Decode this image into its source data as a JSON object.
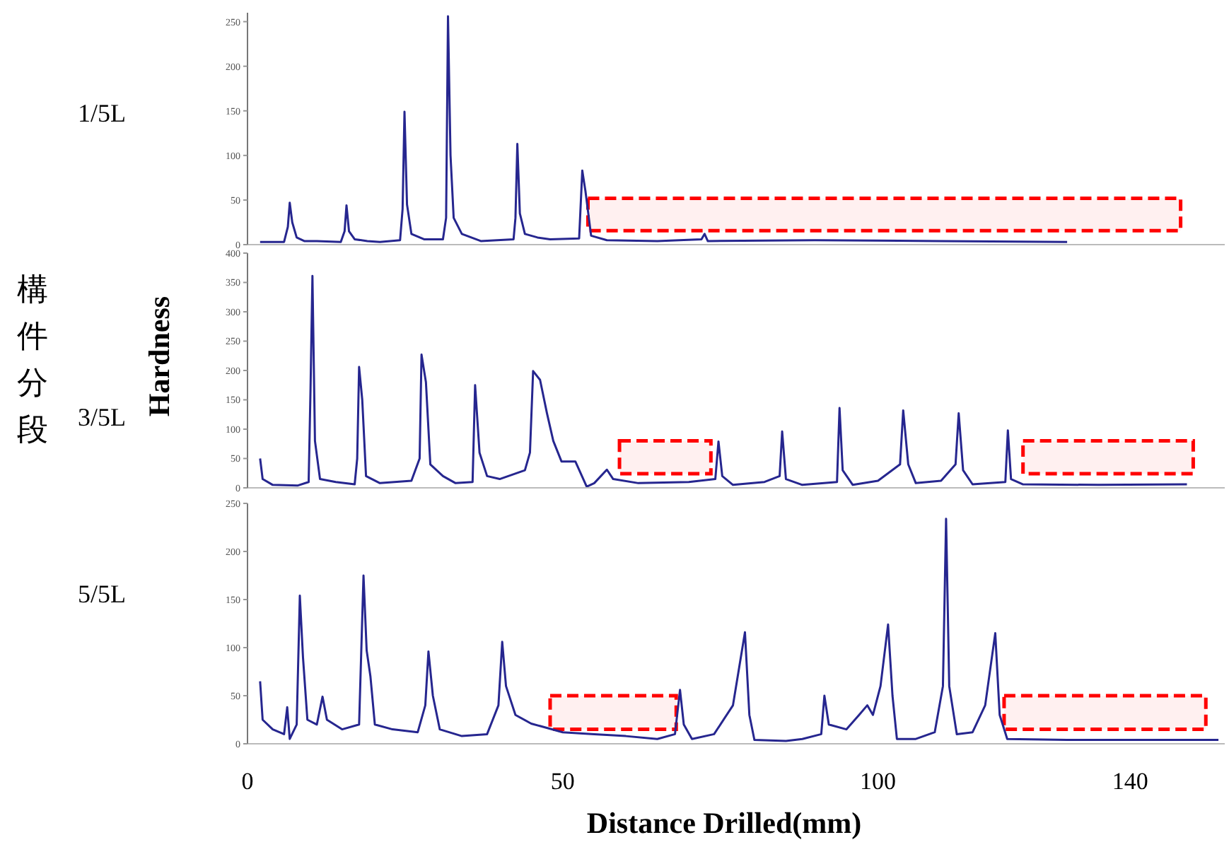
{
  "chart_data": [
    {
      "type": "line",
      "title": "1/5L",
      "tick_labels": "y",
      "xlim": [
        0,
        155
      ],
      "ylim": [
        0,
        260
      ],
      "yticks": [
        0,
        50,
        100,
        150,
        200,
        250
      ],
      "series": [
        {
          "color": "#26268f",
          "x": [
            2,
            5.8,
            6.4,
            6.7,
            7.1,
            7.8,
            9,
            11,
            14.8,
            15.4,
            15.7,
            16.1,
            17,
            19,
            21,
            24.2,
            24.6,
            24.9,
            25.3,
            26,
            28,
            31,
            31.5,
            31.8,
            32.2,
            32.7,
            34,
            35.5,
            37,
            42.2,
            42.5,
            42.8,
            43.2,
            44,
            46,
            48,
            52.6,
            53.1,
            53.6,
            54.5,
            57,
            65,
            72,
            72.5,
            73,
            90,
            110,
            130
          ],
          "values": [
            3,
            3,
            20,
            47,
            25,
            8,
            4,
            4,
            3,
            15,
            44,
            15,
            6,
            4,
            3,
            5,
            40,
            149,
            45,
            12,
            6,
            6,
            30,
            256,
            100,
            30,
            12,
            8,
            4,
            6,
            30,
            113,
            35,
            12,
            8,
            6,
            7,
            83,
            60,
            10,
            5,
            4,
            6,
            12,
            4,
            5,
            4,
            3
          ]
        }
      ],
      "bands": [
        {
          "axis": "x",
          "from": 54,
          "to": 148,
          "color": "#ff0000"
        }
      ]
    },
    {
      "type": "line",
      "title": "3/5L",
      "ylabel": "Hardness",
      "annotations": [
        "構件分段"
      ],
      "tick_labels": "y",
      "xlim": [
        0,
        155
      ],
      "ylim": [
        0,
        400
      ],
      "yticks": [
        0,
        50,
        100,
        150,
        200,
        250,
        300,
        350,
        400
      ],
      "series": [
        {
          "color": "#26268f",
          "x": [
            2,
            2.4,
            4,
            8,
            9.7,
            10,
            10.3,
            10.7,
            11.5,
            14,
            17,
            17.4,
            17.7,
            18.2,
            18.8,
            21,
            26,
            27.3,
            27.6,
            28.3,
            29,
            31,
            33,
            35.7,
            36.1,
            36.8,
            38,
            40,
            44,
            44.8,
            45.3,
            46.4,
            47.5,
            48.5,
            49.8,
            52,
            53.8,
            55,
            57,
            58,
            62,
            70,
            74.2,
            74.7,
            75.3,
            77,
            82,
            84.4,
            84.8,
            85.4,
            88,
            93.5,
            93.9,
            94.4,
            96,
            100,
            103.5,
            104,
            104.8,
            106,
            110,
            112.3,
            112.8,
            113.5,
            115,
            120.2,
            120.6,
            121.1,
            123,
            135,
            149
          ],
          "values": [
            50,
            15,
            5,
            4,
            10,
            170,
            361,
            80,
            15,
            10,
            6,
            50,
            206,
            150,
            20,
            8,
            12,
            50,
            227,
            180,
            40,
            20,
            8,
            10,
            175,
            60,
            20,
            15,
            30,
            60,
            199,
            184,
            127,
            80,
            45,
            45,
            2,
            8,
            31,
            15,
            8,
            10,
            15,
            79,
            20,
            5,
            10,
            20,
            96,
            15,
            5,
            10,
            136,
            30,
            5,
            12,
            40,
            132,
            40,
            8,
            12,
            40,
            127,
            30,
            6,
            10,
            98,
            15,
            6,
            5,
            6
          ]
        }
      ],
      "bands": [
        {
          "axis": "x",
          "from": 59,
          "to": 73.5,
          "color": "#ff0000"
        },
        {
          "axis": "x",
          "from": 123,
          "to": 150,
          "color": "#ff0000"
        }
      ]
    },
    {
      "type": "line",
      "title": "5/5L",
      "xlabel": "Distance Drilled(mm)",
      "xlim": [
        0,
        155
      ],
      "xticks": [
        0,
        50,
        100,
        140
      ],
      "ylim": [
        0,
        250
      ],
      "yticks": [
        0,
        50,
        100,
        150,
        200,
        250
      ],
      "series": [
        {
          "color": "#26268f",
          "x": [
            2,
            2.4,
            4,
            5.8,
            6.3,
            6.7,
            7.8,
            8.3,
            8.8,
            9.5,
            11,
            11.9,
            12.6,
            15,
            17.7,
            18.4,
            18.9,
            19.5,
            20.2,
            23,
            27,
            28.2,
            28.7,
            29.4,
            30.5,
            34,
            38,
            39.8,
            40.4,
            41,
            42.5,
            45,
            50,
            55,
            60,
            65,
            67.8,
            68.6,
            69.2,
            70.5,
            74,
            77,
            78.9,
            79.6,
            80.4,
            85.4,
            88,
            91,
            91.5,
            92.2,
            95,
            97,
            98.3,
            99.2,
            100.4,
            101.6,
            102.3,
            103,
            106,
            109,
            110.3,
            110.8,
            111.3,
            112.5,
            115,
            117,
            118.6,
            119.3,
            120.5,
            130,
            154
          ],
          "values": [
            65,
            25,
            15,
            10,
            38,
            5,
            20,
            154,
            90,
            25,
            20,
            49,
            25,
            15,
            20,
            175,
            97,
            70,
            20,
            15,
            12,
            40,
            96,
            50,
            15,
            8,
            10,
            40,
            106,
            60,
            30,
            21,
            12,
            10,
            8,
            5,
            10,
            56,
            20,
            5,
            10,
            40,
            116,
            30,
            4,
            3,
            5,
            10,
            50,
            20,
            15,
            30,
            40,
            30,
            60,
            124,
            50,
            5,
            5,
            12,
            60,
            234,
            60,
            10,
            12,
            40,
            115,
            30,
            5,
            4,
            4
          ]
        }
      ],
      "bands": [
        {
          "axis": "x",
          "from": 48,
          "to": 68,
          "color": "#ff0000"
        },
        {
          "axis": "x",
          "from": 120,
          "to": 152,
          "color": "#ff0000"
        }
      ]
    }
  ]
}
